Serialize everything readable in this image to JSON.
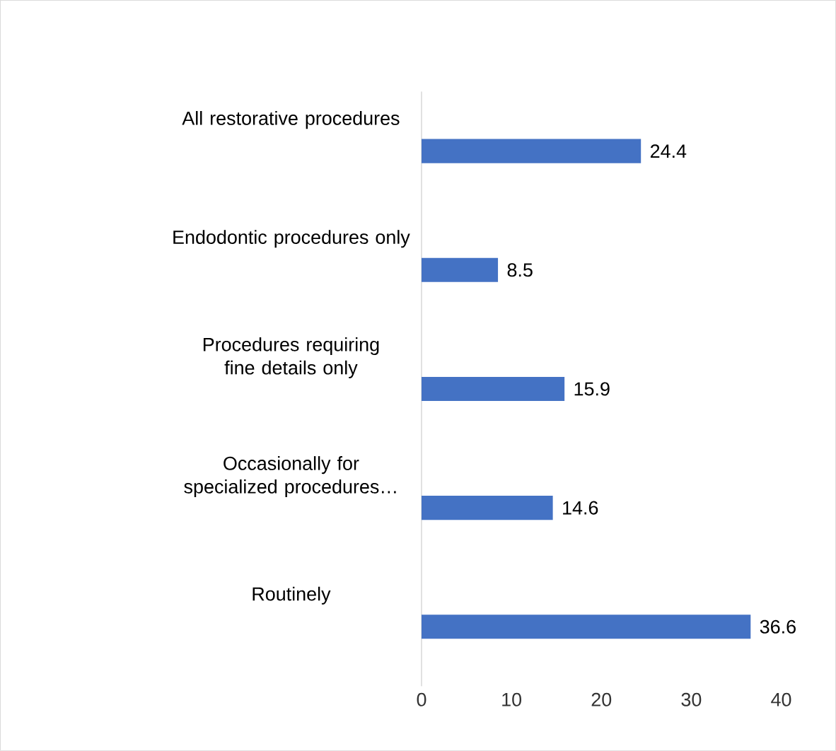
{
  "chart_data": {
    "type": "bar",
    "orientation": "horizontal",
    "categories": [
      "All restorative procedures",
      "Endodontic procedures only",
      "Procedures requiring fine details only",
      "Occasionally for specialized procedures…",
      "Routinely"
    ],
    "values": [
      24.4,
      8.5,
      15.9,
      14.6,
      36.6
    ],
    "color": "#4472c4",
    "xlim": [
      0,
      40
    ],
    "xticks": [
      0,
      10,
      20,
      30,
      40
    ],
    "data_labels": true
  }
}
